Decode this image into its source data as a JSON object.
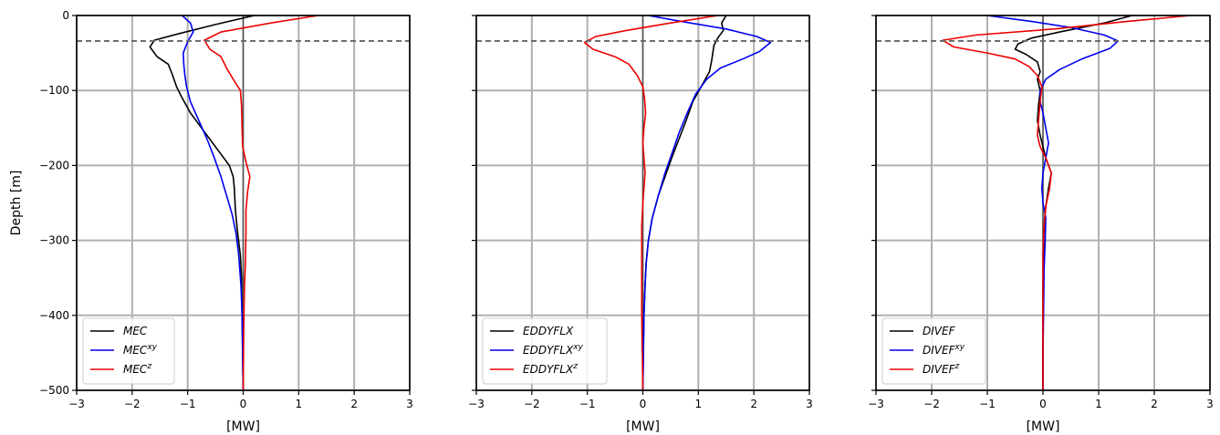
{
  "chart_data": [
    {
      "type": "line",
      "panel": "left",
      "xlabel": "[MW]",
      "ylabel": "Depth [m]",
      "xlim": [
        -3,
        3
      ],
      "ylim": [
        -500,
        0
      ],
      "xticks": [
        "−3",
        "−2",
        "−1",
        "0",
        "1",
        "2",
        "3"
      ],
      "yticks": [
        "0",
        "−100",
        "−200",
        "−300",
        "−400",
        "−500"
      ],
      "grid": true,
      "reference_depth": -34,
      "legend_position": "lower-left",
      "series": [
        {
          "name": "MEC",
          "name_sup": "",
          "color": "#000000",
          "points": [
            [
              0.2,
              0
            ],
            [
              -0.5,
              -12
            ],
            [
              -1.2,
              -25
            ],
            [
              -1.6,
              -33
            ],
            [
              -1.68,
              -42
            ],
            [
              -1.55,
              -55
            ],
            [
              -1.35,
              -65
            ],
            [
              -1.28,
              -78
            ],
            [
              -1.2,
              -95
            ],
            [
              -1.1,
              -110
            ],
            [
              -0.95,
              -130
            ],
            [
              -0.75,
              -150
            ],
            [
              -0.55,
              -170
            ],
            [
              -0.4,
              -185
            ],
            [
              -0.25,
              -200
            ],
            [
              -0.18,
              -215
            ],
            [
              -0.16,
              -230
            ],
            [
              -0.14,
              -260
            ],
            [
              -0.1,
              -290
            ],
            [
              -0.05,
              -320
            ],
            [
              -0.03,
              -350
            ],
            [
              -0.02,
              -400
            ],
            [
              -0.01,
              -450
            ],
            [
              0,
              -500
            ]
          ]
        },
        {
          "name": "MEC",
          "name_sup": "xy",
          "color": "#0000ee",
          "points": [
            [
              -1.1,
              0
            ],
            [
              -0.95,
              -10
            ],
            [
              -0.9,
              -22
            ],
            [
              -1.0,
              -35
            ],
            [
              -1.08,
              -50
            ],
            [
              -1.07,
              -65
            ],
            [
              -1.05,
              -80
            ],
            [
              -1.02,
              -95
            ],
            [
              -0.95,
              -115
            ],
            [
              -0.8,
              -140
            ],
            [
              -0.65,
              -165
            ],
            [
              -0.52,
              -190
            ],
            [
              -0.4,
              -215
            ],
            [
              -0.3,
              -240
            ],
            [
              -0.2,
              -265
            ],
            [
              -0.13,
              -290
            ],
            [
              -0.08,
              -320
            ],
            [
              -0.04,
              -360
            ],
            [
              -0.02,
              -400
            ],
            [
              -0.01,
              -450
            ],
            [
              0,
              -500
            ]
          ]
        },
        {
          "name": "MEC",
          "name_sup": "z",
          "color": "#ee0000",
          "points": [
            [
              1.35,
              0
            ],
            [
              0.5,
              -10
            ],
            [
              -0.4,
              -22
            ],
            [
              -0.7,
              -33
            ],
            [
              -0.6,
              -45
            ],
            [
              -0.4,
              -55
            ],
            [
              -0.3,
              -70
            ],
            [
              -0.18,
              -85
            ],
            [
              -0.05,
              -100
            ],
            [
              -0.03,
              -120
            ],
            [
              -0.02,
              -150
            ],
            [
              -0.01,
              -175
            ],
            [
              0.05,
              -195
            ],
            [
              0.12,
              -215
            ],
            [
              0.08,
              -235
            ],
            [
              0.05,
              -260
            ],
            [
              0.05,
              -290
            ],
            [
              0.04,
              -330
            ],
            [
              0.02,
              -370
            ],
            [
              0.01,
              -420
            ],
            [
              0,
              -500
            ]
          ]
        }
      ]
    },
    {
      "type": "line",
      "panel": "middle",
      "xlabel": "[MW]",
      "ylabel": "",
      "xlim": [
        -3,
        3
      ],
      "ylim": [
        -500,
        0
      ],
      "xticks": [
        "−3",
        "−2",
        "−1",
        "0",
        "1",
        "2",
        "3"
      ],
      "grid": true,
      "reference_depth": -34,
      "legend_position": "lower-left",
      "series": [
        {
          "name": "EDDYFLX",
          "name_sup": "",
          "color": "#000000",
          "points": [
            [
              1.5,
              0
            ],
            [
              1.42,
              -10
            ],
            [
              1.45,
              -20
            ],
            [
              1.35,
              -30
            ],
            [
              1.28,
              -40
            ],
            [
              1.26,
              -50
            ],
            [
              1.24,
              -60
            ],
            [
              1.2,
              -75
            ],
            [
              1.05,
              -95
            ],
            [
              0.9,
              -115
            ],
            [
              0.78,
              -140
            ],
            [
              0.65,
              -165
            ],
            [
              0.52,
              -190
            ],
            [
              0.4,
              -215
            ],
            [
              0.28,
              -240
            ],
            [
              0.17,
              -270
            ],
            [
              0.1,
              -300
            ],
            [
              0.06,
              -330
            ],
            [
              0.04,
              -360
            ],
            [
              0.02,
              -400
            ],
            [
              0.01,
              -450
            ],
            [
              0,
              -500
            ]
          ]
        },
        {
          "name": "EDDYFLX",
          "name_sup": "xy",
          "color": "#0000ee",
          "points": [
            [
              0.1,
              0
            ],
            [
              0.7,
              -8
            ],
            [
              1.5,
              -18
            ],
            [
              2.05,
              -28
            ],
            [
              2.3,
              -36
            ],
            [
              2.1,
              -48
            ],
            [
              1.8,
              -58
            ],
            [
              1.4,
              -70
            ],
            [
              1.15,
              -85
            ],
            [
              0.95,
              -105
            ],
            [
              0.8,
              -130
            ],
            [
              0.66,
              -155
            ],
            [
              0.52,
              -185
            ],
            [
              0.4,
              -210
            ],
            [
              0.28,
              -240
            ],
            [
              0.17,
              -270
            ],
            [
              0.1,
              -300
            ],
            [
              0.06,
              -330
            ],
            [
              0.04,
              -360
            ],
            [
              0.02,
              -400
            ],
            [
              0.01,
              -450
            ],
            [
              0,
              -500
            ]
          ]
        },
        {
          "name": "EDDYFLX",
          "name_sup": "z",
          "color": "#ee0000",
          "points": [
            [
              1.35,
              0
            ],
            [
              0.5,
              -10
            ],
            [
              -0.3,
              -20
            ],
            [
              -0.85,
              -28
            ],
            [
              -1.05,
              -36
            ],
            [
              -0.9,
              -45
            ],
            [
              -0.5,
              -55
            ],
            [
              -0.25,
              -65
            ],
            [
              -0.1,
              -80
            ],
            [
              0.0,
              -95
            ],
            [
              0.03,
              -110
            ],
            [
              0.05,
              -130
            ],
            [
              0.02,
              -150
            ],
            [
              0.0,
              -170
            ],
            [
              0.02,
              -190
            ],
            [
              0.04,
              -210
            ],
            [
              0.02,
              -230
            ],
            [
              0.0,
              -250
            ],
            [
              -0.02,
              -280
            ],
            [
              -0.02,
              -320
            ],
            [
              -0.02,
              -360
            ],
            [
              -0.02,
              -400
            ],
            [
              -0.01,
              -450
            ],
            [
              0,
              -500
            ]
          ]
        }
      ]
    },
    {
      "type": "line",
      "panel": "right",
      "xlabel": "[MW]",
      "ylabel": "",
      "xlim": [
        -3,
        3
      ],
      "ylim": [
        -500,
        0
      ],
      "xticks": [
        "−3",
        "−2",
        "−1",
        "0",
        "1",
        "2",
        "3"
      ],
      "grid": true,
      "reference_depth": -34,
      "legend_position": "lower-left",
      "series": [
        {
          "name": "DIVEF",
          "name_sup": "",
          "color": "#000000",
          "points": [
            [
              1.6,
              0
            ],
            [
              1.1,
              -10
            ],
            [
              0.3,
              -22
            ],
            [
              -0.2,
              -30
            ],
            [
              -0.45,
              -38
            ],
            [
              -0.5,
              -45
            ],
            [
              -0.3,
              -52
            ],
            [
              -0.1,
              -62
            ],
            [
              -0.05,
              -75
            ],
            [
              -0.1,
              -85
            ],
            [
              -0.05,
              -100
            ],
            [
              -0.08,
              -120
            ],
            [
              -0.1,
              -140
            ],
            [
              -0.05,
              -160
            ],
            [
              0.0,
              -175
            ],
            [
              0.05,
              -190
            ],
            [
              0.15,
              -210
            ],
            [
              0.1,
              -230
            ],
            [
              0.05,
              -255
            ],
            [
              0.02,
              -280
            ],
            [
              0.01,
              -320
            ],
            [
              0.0,
              -370
            ],
            [
              0.0,
              -430
            ],
            [
              0,
              -500
            ]
          ]
        },
        {
          "name": "DIVEF",
          "name_sup": "xy",
          "color": "#0000ee",
          "points": [
            [
              -1.0,
              0
            ],
            [
              -0.2,
              -8
            ],
            [
              0.5,
              -16
            ],
            [
              1.1,
              -26
            ],
            [
              1.35,
              -34
            ],
            [
              1.2,
              -44
            ],
            [
              0.7,
              -58
            ],
            [
              0.3,
              -72
            ],
            [
              0.05,
              -85
            ],
            [
              -0.05,
              -100
            ],
            [
              -0.05,
              -115
            ],
            [
              0.0,
              -130
            ],
            [
              0.05,
              -150
            ],
            [
              0.1,
              -170
            ],
            [
              0.05,
              -190
            ],
            [
              0.0,
              -210
            ],
            [
              -0.02,
              -230
            ],
            [
              0.0,
              -250
            ],
            [
              0.05,
              -270
            ],
            [
              0.04,
              -300
            ],
            [
              0.02,
              -340
            ],
            [
              0.01,
              -400
            ],
            [
              0.0,
              -450
            ],
            [
              0,
              -500
            ]
          ]
        },
        {
          "name": "DIVEF",
          "name_sup": "z",
          "color": "#ee0000",
          "points": [
            [
              2.65,
              0
            ],
            [
              1.5,
              -8
            ],
            [
              0.2,
              -18
            ],
            [
              -1.2,
              -26
            ],
            [
              -1.8,
              -33
            ],
            [
              -1.6,
              -42
            ],
            [
              -1.0,
              -50
            ],
            [
              -0.5,
              -58
            ],
            [
              -0.25,
              -68
            ],
            [
              -0.1,
              -80
            ],
            [
              -0.02,
              -95
            ],
            [
              -0.05,
              -115
            ],
            [
              -0.08,
              -140
            ],
            [
              -0.1,
              -160
            ],
            [
              -0.05,
              -175
            ],
            [
              0.05,
              -190
            ],
            [
              0.15,
              -210
            ],
            [
              0.12,
              -230
            ],
            [
              0.05,
              -255
            ],
            [
              0.02,
              -280
            ],
            [
              0.0,
              -320
            ],
            [
              0.0,
              -370
            ],
            [
              0.0,
              -430
            ],
            [
              0,
              -500
            ]
          ]
        }
      ]
    }
  ]
}
